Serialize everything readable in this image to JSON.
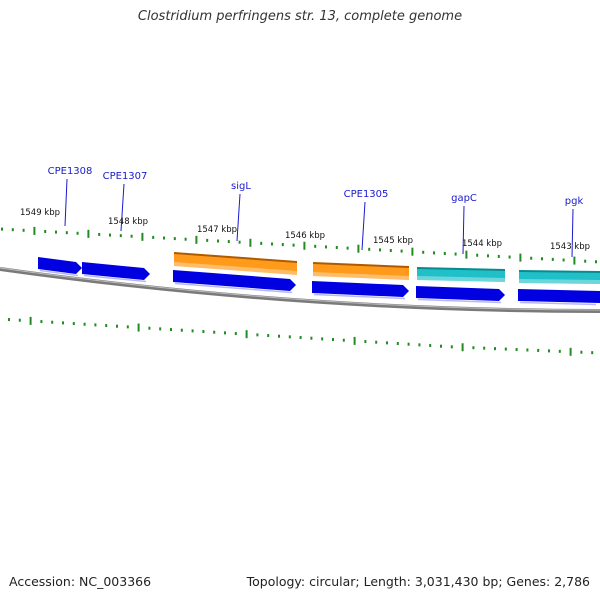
{
  "title": "Clostridium perfringens str. 13, complete genome",
  "footer": {
    "accession": "Accession: NC_003366",
    "summary": "Topology: circular; Length: 3,031,430 bp; Genes: 2,786"
  },
  "colors": {
    "backbone": "#7a7a7a",
    "tick": "#228b22",
    "gene_strand": "#0000e0",
    "cds_orange": "#ff9a1a",
    "cds_teal": "#20c0c8",
    "label": "#1a1acd",
    "kbp_text": "#111111"
  },
  "kbp_labels": [
    "1549 kbp",
    "1548 kbp",
    "1547 kbp",
    "1546 kbp",
    "1545 kbp",
    "1544 kbp",
    "1543 kbp"
  ],
  "gene_labels": [
    "CPE1308",
    "CPE1307",
    "sigL",
    "CPE1305",
    "gapC",
    "pgk"
  ],
  "features": [
    {
      "track": "gene",
      "label": "CPE1308"
    },
    {
      "track": "gene",
      "label": "CPE1307"
    },
    {
      "track": "gene",
      "label": "sigL"
    },
    {
      "track": "cds",
      "label": "sigL",
      "color": "orange"
    },
    {
      "track": "gene",
      "label": "CPE1305"
    },
    {
      "track": "cds",
      "label": "CPE1305",
      "color": "orange"
    },
    {
      "track": "gene",
      "label": "gapC"
    },
    {
      "track": "cds",
      "label": "gapC",
      "color": "teal"
    },
    {
      "track": "gene",
      "label": "pgk"
    },
    {
      "track": "cds",
      "label": "pgk",
      "color": "teal"
    }
  ]
}
